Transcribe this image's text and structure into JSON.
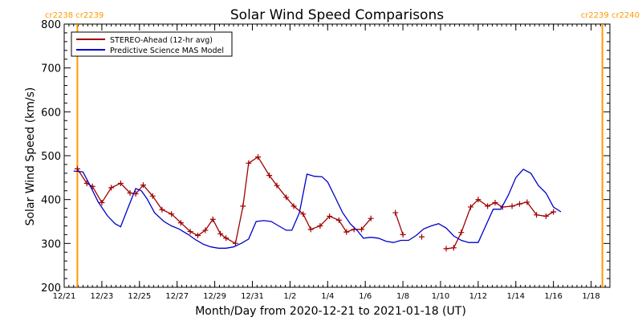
{
  "chart_data": {
    "type": "line",
    "title": "Solar Wind Speed Comparisons",
    "xlabel": "Month/Day from 2020-12-21 to 2021-01-18 (UT)",
    "ylabel": "Solar Wind Speed (km/s)",
    "xlim": [
      0,
      29
    ],
    "ylim": [
      200,
      800
    ],
    "yticks": [
      200,
      300,
      400,
      500,
      600,
      700,
      800
    ],
    "xticks": [
      {
        "x": 0,
        "label": "12/21"
      },
      {
        "x": 2,
        "label": "12/23"
      },
      {
        "x": 4,
        "label": "12/25"
      },
      {
        "x": 6,
        "label": "12/27"
      },
      {
        "x": 8,
        "label": "12/29"
      },
      {
        "x": 10,
        "label": "12/31"
      },
      {
        "x": 12,
        "label": "1/2"
      },
      {
        "x": 14,
        "label": "1/4"
      },
      {
        "x": 16,
        "label": "1/6"
      },
      {
        "x": 18,
        "label": "1/8"
      },
      {
        "x": 20,
        "label": "1/10"
      },
      {
        "x": 22,
        "label": "1/12"
      },
      {
        "x": 24,
        "label": "1/14"
      },
      {
        "x": 26,
        "label": "1/16"
      },
      {
        "x": 28,
        "label": "1/18"
      }
    ],
    "legend_position": "top-left",
    "carrington_markers": [
      {
        "x": 0.7,
        "left_label": "cr2238",
        "right_label": "cr2239",
        "side": "top-left",
        "color": "#FF9900"
      },
      {
        "x": 28.6,
        "left_label": "cr2239",
        "right_label": "cr2240",
        "side": "top-right",
        "color": "#FF9900"
      }
    ],
    "series": [
      {
        "name": "STEREO-Ahead (12-hr avg)",
        "color": "#a00000",
        "markers": true,
        "segments": [
          [
            [
              0.7,
              470
            ],
            [
              1.2,
              437
            ],
            [
              1.5,
              430
            ],
            [
              2.0,
              393
            ],
            [
              2.5,
              427
            ],
            [
              3.0,
              437
            ],
            [
              3.5,
              415
            ],
            [
              3.8,
              413
            ],
            [
              4.2,
              433
            ],
            [
              4.7,
              408
            ],
            [
              5.2,
              377
            ],
            [
              5.7,
              367
            ],
            [
              6.2,
              347
            ],
            [
              6.7,
              327
            ],
            [
              7.1,
              318
            ],
            [
              7.5,
              330
            ],
            [
              7.9,
              355
            ],
            [
              8.3,
              322
            ],
            [
              8.6,
              312
            ],
            [
              9.1,
              300
            ],
            [
              9.5,
              385
            ],
            [
              9.8,
              483
            ],
            [
              10.3,
              497
            ],
            [
              10.9,
              455
            ],
            [
              11.3,
              432
            ],
            [
              11.8,
              405
            ],
            [
              12.2,
              385
            ],
            [
              12.7,
              367
            ],
            [
              13.1,
              332
            ],
            [
              13.6,
              340
            ],
            [
              14.1,
              362
            ],
            [
              14.6,
              353
            ],
            [
              15.0,
              326
            ],
            [
              15.4,
              332
            ],
            [
              15.8,
              332
            ],
            [
              16.3,
              357
            ]
          ],
          [
            [
              17.6,
              370
            ],
            [
              18.0,
              320
            ]
          ],
          [
            [
              19.0,
              315
            ]
          ],
          [
            [
              20.3,
              288
            ],
            [
              20.7,
              290
            ],
            [
              21.1,
              325
            ],
            [
              21.6,
              383
            ],
            [
              22.0,
              400
            ],
            [
              22.5,
              385
            ],
            [
              22.9,
              393
            ],
            [
              23.3,
              383
            ],
            [
              23.8,
              385
            ],
            [
              24.2,
              390
            ],
            [
              24.6,
              394
            ],
            [
              25.1,
              365
            ],
            [
              25.6,
              362
            ],
            [
              26.0,
              372
            ]
          ]
        ]
      },
      {
        "name": "Predictive Science MAS Model",
        "color": "#0000cc",
        "markers": false,
        "segments": [
          [
            [
              0.5,
              465
            ],
            [
              1.0,
              463
            ],
            [
              1.4,
              430
            ],
            [
              1.8,
              395
            ],
            [
              2.3,
              363
            ],
            [
              2.7,
              345
            ],
            [
              3.0,
              338
            ],
            [
              3.4,
              382
            ],
            [
              3.8,
              425
            ],
            [
              4.1,
              420
            ],
            [
              4.4,
              402
            ],
            [
              4.8,
              370
            ],
            [
              5.3,
              350
            ],
            [
              5.7,
              340
            ],
            [
              6.1,
              333
            ],
            [
              6.6,
              320
            ],
            [
              7.0,
              308
            ],
            [
              7.4,
              298
            ],
            [
              7.8,
              292
            ],
            [
              8.2,
              289
            ],
            [
              8.6,
              289
            ],
            [
              9.0,
              292
            ],
            [
              9.4,
              300
            ],
            [
              9.8,
              310
            ],
            [
              10.2,
              350
            ],
            [
              10.6,
              352
            ],
            [
              11.0,
              350
            ],
            [
              11.4,
              340
            ],
            [
              11.8,
              330
            ],
            [
              12.1,
              330
            ],
            [
              12.5,
              370
            ],
            [
              12.9,
              458
            ],
            [
              13.3,
              453
            ],
            [
              13.7,
              452
            ],
            [
              14.0,
              440
            ],
            [
              14.4,
              405
            ],
            [
              14.8,
              370
            ],
            [
              15.2,
              345
            ],
            [
              15.6,
              328
            ],
            [
              15.9,
              312
            ],
            [
              16.3,
              314
            ],
            [
              16.7,
              312
            ],
            [
              17.1,
              305
            ],
            [
              17.5,
              302
            ],
            [
              17.9,
              307
            ],
            [
              18.3,
              307
            ],
            [
              18.7,
              318
            ],
            [
              19.1,
              333
            ],
            [
              19.5,
              340
            ],
            [
              19.9,
              345
            ],
            [
              20.3,
              335
            ],
            [
              20.7,
              317
            ],
            [
              21.1,
              307
            ],
            [
              21.5,
              302
            ],
            [
              22.0,
              302
            ],
            [
              22.4,
              340
            ],
            [
              22.8,
              378
            ],
            [
              23.2,
              378
            ],
            [
              23.6,
              410
            ],
            [
              24.0,
              450
            ],
            [
              24.4,
              469
            ],
            [
              24.8,
              460
            ],
            [
              25.2,
              432
            ],
            [
              25.6,
              415
            ],
            [
              26.0,
              383
            ],
            [
              26.4,
              372
            ]
          ]
        ]
      }
    ]
  }
}
